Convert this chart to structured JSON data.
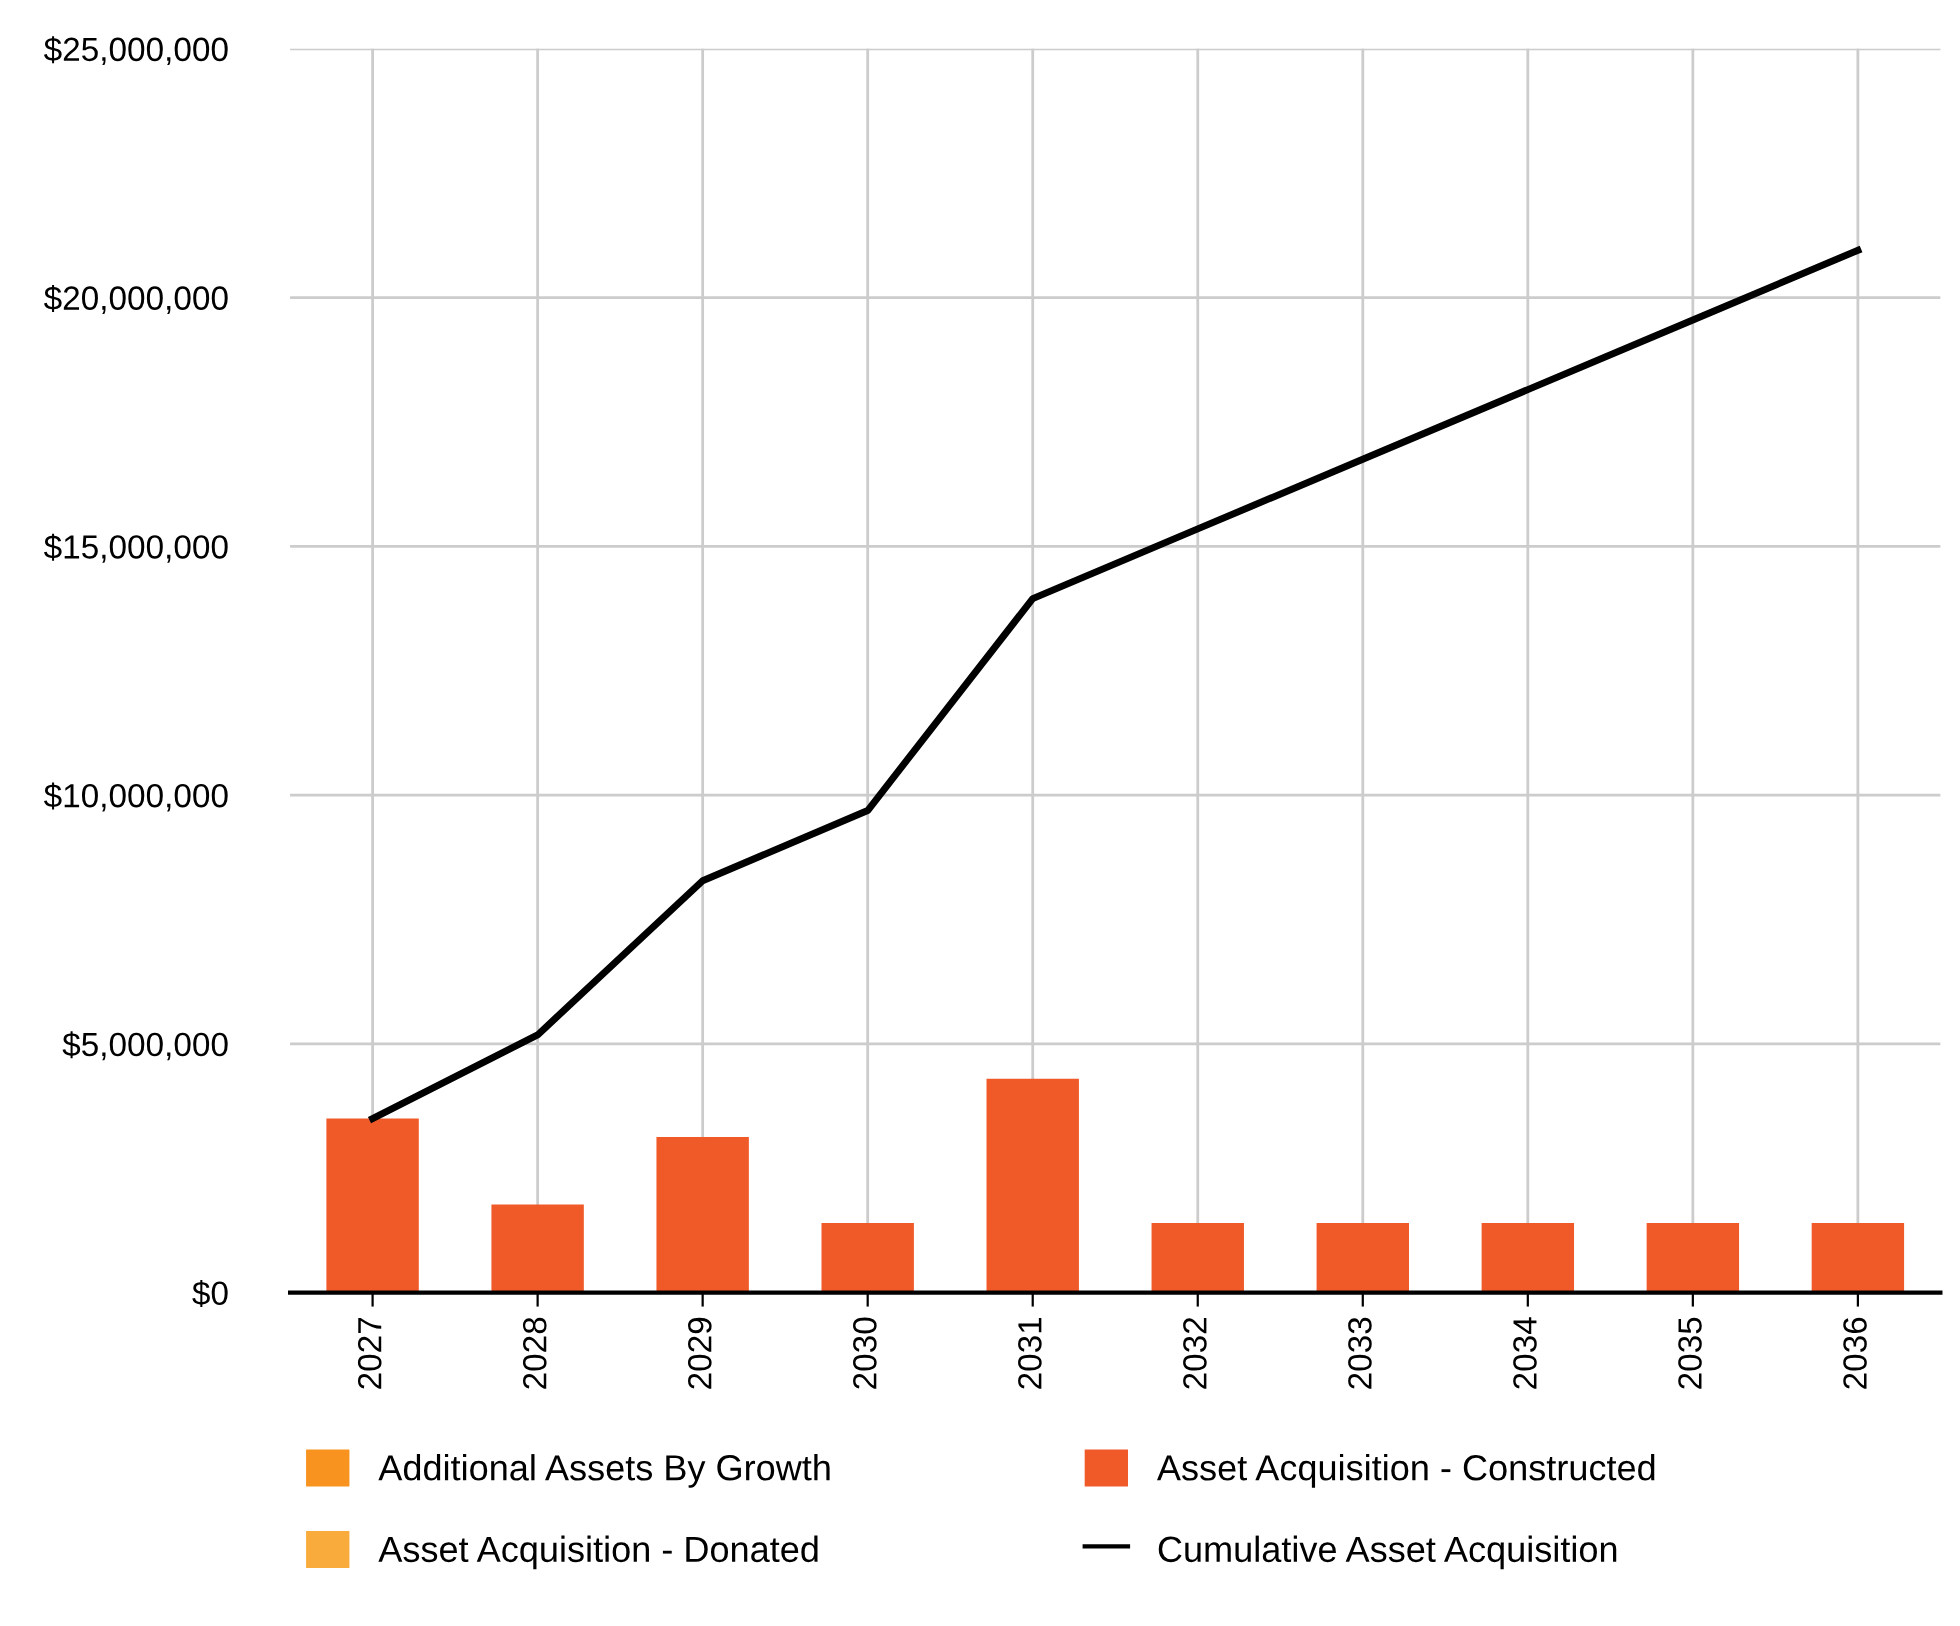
{
  "chart_data": {
    "type": "bar",
    "stacked": true,
    "categories": [
      "2027",
      "2028",
      "2029",
      "2030",
      "2031",
      "2032",
      "2033",
      "2034",
      "2035",
      "2036"
    ],
    "series": [
      {
        "name": "Additional Assets By Growth",
        "color": "#f7931e",
        "values": [
          0,
          0,
          0,
          0,
          0,
          0,
          0,
          0,
          0,
          0
        ]
      },
      {
        "name": "Asset Acquisition - Donated",
        "color": "#f9ab3b",
        "values": [
          0,
          0,
          0,
          0,
          0,
          0,
          0,
          0,
          0,
          0
        ]
      },
      {
        "name": "Asset Acquisition - Constructed",
        "color": "#f05a28",
        "values": [
          3500000,
          1770000,
          3130000,
          1400000,
          4300000,
          1400000,
          1400000,
          1400000,
          1400000,
          1400000
        ]
      },
      {
        "name": "Cumulative Asset Acquisition",
        "type": "line",
        "color": "#000000",
        "values": [
          3500000,
          5180000,
          8280000,
          9690000,
          13950000,
          15350000,
          16750000,
          18150000,
          19550000,
          20950000
        ]
      }
    ],
    "ylim": [
      0,
      25000000
    ],
    "yticks": [
      {
        "value": 0,
        "label": "$0"
      },
      {
        "value": 5000000,
        "label": "$5,000,000"
      },
      {
        "value": 10000000,
        "label": "$10,000,000"
      },
      {
        "value": 15000000,
        "label": "$15,000,000"
      },
      {
        "value": 20000000,
        "label": "$20,000,000"
      },
      {
        "value": 25000000,
        "label": "$25,000,000"
      }
    ],
    "grid": true,
    "legend": "bottom",
    "marker": "none",
    "line_style": "solid"
  }
}
